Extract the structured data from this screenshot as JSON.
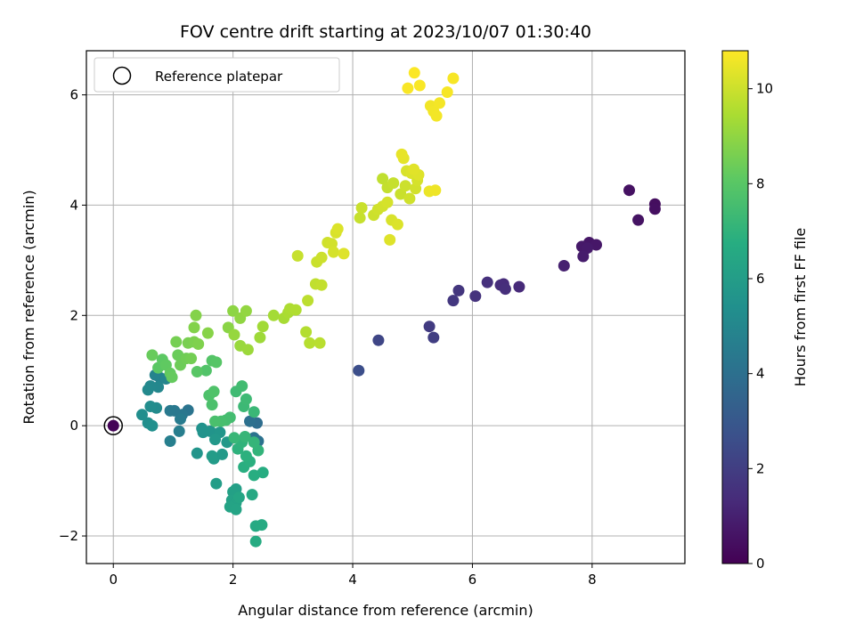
{
  "chart_data": {
    "type": "scatter",
    "title": "FOV centre drift starting at 2023/10/07 01:30:40",
    "xlabel": "Angular distance from reference (arcmin)",
    "ylabel": "Rotation from reference (arcmin)",
    "xlim": [
      -0.45,
      9.55
    ],
    "ylim": [
      -2.5,
      6.8
    ],
    "xticks": [
      0,
      2,
      4,
      6,
      8
    ],
    "yticks": [
      -2,
      0,
      2,
      4,
      6
    ],
    "xtick_labels": [
      "0",
      "2",
      "4",
      "6",
      "8"
    ],
    "ytick_labels": [
      "−2",
      "0",
      "2",
      "4",
      "6"
    ],
    "grid": true,
    "legend": {
      "position": "upper-left",
      "entries": [
        "Reference platepar"
      ]
    },
    "colorbar": {
      "label": "Hours from first FF file",
      "colormap": "viridis",
      "range": [
        0,
        10.8
      ],
      "ticks": [
        0,
        2,
        4,
        6,
        8,
        10
      ],
      "tick_labels": [
        "0",
        "2",
        "4",
        "6",
        "8",
        "10"
      ]
    },
    "reference_point": {
      "x": 0,
      "y": 0,
      "c": 0.1
    },
    "points": [
      [
        9.05,
        4.02,
        0.4
      ],
      [
        9.05,
        3.93,
        0.45
      ],
      [
        8.62,
        4.27,
        0.5
      ],
      [
        8.77,
        3.73,
        0.55
      ],
      [
        7.95,
        3.32,
        0.65
      ],
      [
        8.07,
        3.28,
        0.7
      ],
      [
        7.83,
        3.25,
        0.75
      ],
      [
        7.92,
        3.22,
        0.8
      ],
      [
        7.85,
        3.07,
        0.85
      ],
      [
        7.53,
        2.9,
        1.0
      ],
      [
        6.78,
        2.52,
        1.3
      ],
      [
        6.52,
        2.57,
        1.35
      ],
      [
        6.47,
        2.55,
        1.4
      ],
      [
        6.55,
        2.48,
        1.45
      ],
      [
        6.25,
        2.6,
        1.5
      ],
      [
        6.05,
        2.35,
        1.6
      ],
      [
        5.77,
        2.45,
        1.7
      ],
      [
        5.68,
        2.27,
        1.75
      ],
      [
        5.28,
        1.8,
        1.9
      ],
      [
        5.35,
        1.6,
        2.0
      ],
      [
        4.43,
        1.55,
        2.3
      ],
      [
        4.1,
        1.0,
        2.6
      ],
      [
        2.4,
        0.05,
        3.9
      ],
      [
        2.28,
        0.08,
        4.0
      ],
      [
        2.42,
        -0.28,
        4.1
      ],
      [
        2.35,
        -0.22,
        4.15
      ],
      [
        1.25,
        0.28,
        4.2
      ],
      [
        1.15,
        0.2,
        4.3
      ],
      [
        1.02,
        0.27,
        4.35
      ],
      [
        0.95,
        0.27,
        4.4
      ],
      [
        1.12,
        0.12,
        4.5
      ],
      [
        1.1,
        -0.1,
        4.6
      ],
      [
        0.95,
        -0.28,
        4.65
      ],
      [
        0.78,
        0.87,
        4.8
      ],
      [
        0.7,
        0.92,
        4.85
      ],
      [
        0.88,
        0.85,
        4.9
      ],
      [
        0.75,
        0.7,
        5.0
      ],
      [
        0.62,
        0.72,
        5.05
      ],
      [
        0.58,
        0.65,
        5.1
      ],
      [
        0.72,
        0.32,
        5.2
      ],
      [
        0.62,
        0.35,
        5.25
      ],
      [
        0.48,
        0.2,
        5.3
      ],
      [
        0.58,
        0.05,
        5.35
      ],
      [
        0.65,
        0.0,
        5.4
      ],
      [
        1.48,
        -0.05,
        5.5
      ],
      [
        1.5,
        -0.12,
        5.55
      ],
      [
        1.62,
        -0.1,
        5.6
      ],
      [
        1.4,
        -0.5,
        5.65
      ],
      [
        1.78,
        -0.12,
        5.7
      ],
      [
        1.7,
        -0.25,
        5.75
      ],
      [
        1.9,
        -0.3,
        5.8
      ],
      [
        1.82,
        -0.52,
        5.85
      ],
      [
        1.68,
        -0.6,
        5.9
      ],
      [
        1.65,
        -0.55,
        5.95
      ],
      [
        1.72,
        -1.05,
        6.0
      ],
      [
        2.05,
        -1.15,
        6.1
      ],
      [
        2.0,
        -1.2,
        6.15
      ],
      [
        1.98,
        -1.35,
        6.2
      ],
      [
        2.05,
        -1.4,
        6.25
      ],
      [
        1.95,
        -1.47,
        6.3
      ],
      [
        2.05,
        -1.52,
        6.35
      ],
      [
        2.1,
        -1.3,
        6.4
      ],
      [
        2.32,
        -1.25,
        6.5
      ],
      [
        2.38,
        -1.82,
        6.55
      ],
      [
        2.48,
        -1.8,
        6.6
      ],
      [
        2.38,
        -2.1,
        6.65
      ],
      [
        2.5,
        -0.85,
        6.7
      ],
      [
        2.35,
        -0.9,
        6.75
      ],
      [
        2.18,
        -0.75,
        6.8
      ],
      [
        2.28,
        -0.65,
        6.85
      ],
      [
        2.22,
        -0.55,
        6.9
      ],
      [
        2.08,
        -0.42,
        6.95
      ],
      [
        2.15,
        -0.3,
        7.0
      ],
      [
        2.42,
        -0.45,
        7.05
      ],
      [
        2.35,
        -0.3,
        7.1
      ],
      [
        2.2,
        -0.2,
        7.15
      ],
      [
        2.02,
        -0.22,
        7.2
      ],
      [
        2.35,
        0.25,
        7.25
      ],
      [
        2.18,
        0.35,
        7.3
      ],
      [
        2.22,
        0.48,
        7.35
      ],
      [
        2.05,
        0.62,
        7.4
      ],
      [
        2.15,
        0.72,
        7.45
      ],
      [
        1.95,
        0.15,
        7.5
      ],
      [
        1.88,
        0.1,
        7.55
      ],
      [
        1.8,
        0.08,
        7.6
      ],
      [
        1.7,
        0.08,
        7.65
      ],
      [
        1.65,
        0.38,
        7.7
      ],
      [
        1.6,
        0.55,
        7.75
      ],
      [
        1.68,
        0.62,
        7.8
      ],
      [
        1.55,
        1.0,
        7.85
      ],
      [
        1.65,
        1.18,
        7.9
      ],
      [
        1.72,
        1.15,
        7.95
      ],
      [
        1.4,
        0.98,
        8.0
      ],
      [
        0.75,
        1.05,
        8.05
      ],
      [
        0.82,
        1.2,
        8.1
      ],
      [
        0.88,
        1.1,
        8.15
      ],
      [
        0.95,
        0.95,
        8.2
      ],
      [
        0.98,
        0.88,
        8.25
      ],
      [
        0.65,
        1.28,
        8.3
      ],
      [
        1.08,
        1.28,
        8.35
      ],
      [
        1.12,
        1.1,
        8.4
      ],
      [
        1.22,
        1.22,
        8.45
      ],
      [
        1.3,
        1.22,
        8.5
      ],
      [
        1.05,
        1.52,
        8.55
      ],
      [
        1.25,
        1.5,
        8.6
      ],
      [
        1.35,
        1.52,
        8.65
      ],
      [
        1.42,
        1.48,
        8.7
      ],
      [
        1.35,
        1.78,
        8.75
      ],
      [
        1.38,
        2.0,
        8.8
      ],
      [
        1.58,
        1.68,
        8.85
      ],
      [
        1.92,
        1.78,
        8.9
      ],
      [
        2.0,
        2.08,
        8.95
      ],
      [
        2.12,
        1.95,
        9.0
      ],
      [
        2.22,
        2.08,
        9.05
      ],
      [
        2.02,
        1.65,
        9.1
      ],
      [
        2.12,
        1.45,
        9.15
      ],
      [
        2.25,
        1.38,
        9.2
      ],
      [
        2.45,
        1.6,
        9.25
      ],
      [
        2.5,
        1.8,
        9.3
      ],
      [
        2.68,
        2.0,
        9.35
      ],
      [
        2.85,
        1.95,
        9.4
      ],
      [
        2.92,
        2.05,
        9.45
      ],
      [
        2.95,
        2.12,
        9.5
      ],
      [
        3.05,
        2.1,
        9.55
      ],
      [
        3.22,
        1.7,
        9.6
      ],
      [
        3.28,
        1.5,
        9.65
      ],
      [
        3.45,
        1.5,
        9.7
      ],
      [
        3.25,
        2.27,
        9.75
      ],
      [
        3.38,
        2.57,
        9.8
      ],
      [
        3.48,
        2.55,
        9.85
      ],
      [
        3.08,
        3.08,
        9.9
      ],
      [
        3.4,
        2.97,
        9.95
      ],
      [
        3.48,
        3.05,
        10.0
      ],
      [
        3.58,
        3.32,
        10.05
      ],
      [
        3.65,
        3.3,
        10.1
      ],
      [
        3.68,
        3.15,
        10.15
      ],
      [
        3.72,
        3.5,
        10.2
      ],
      [
        3.75,
        3.57,
        10.25
      ],
      [
        3.85,
        3.12,
        10.3
      ],
      [
        4.12,
        3.77,
        9.9
      ],
      [
        4.15,
        3.95,
        9.95
      ],
      [
        4.35,
        3.82,
        10.0
      ],
      [
        4.42,
        3.92,
        10.05
      ],
      [
        4.5,
        3.98,
        10.1
      ],
      [
        4.58,
        4.05,
        10.15
      ],
      [
        4.65,
        3.73,
        10.2
      ],
      [
        4.75,
        3.65,
        10.25
      ],
      [
        4.62,
        3.37,
        10.3
      ],
      [
        4.5,
        4.48,
        9.8
      ],
      [
        4.58,
        4.32,
        9.85
      ],
      [
        4.68,
        4.4,
        9.9
      ],
      [
        4.8,
        4.2,
        9.95
      ],
      [
        4.88,
        4.35,
        10.0
      ],
      [
        4.95,
        4.12,
        10.05
      ],
      [
        5.05,
        4.3,
        10.1
      ],
      [
        5.08,
        4.45,
        10.15
      ],
      [
        4.9,
        4.62,
        10.2
      ],
      [
        4.98,
        4.58,
        10.25
      ],
      [
        5.1,
        4.55,
        10.3
      ],
      [
        5.02,
        4.65,
        10.35
      ],
      [
        4.85,
        4.85,
        10.4
      ],
      [
        4.82,
        4.92,
        10.45
      ],
      [
        5.28,
        4.25,
        10.5
      ],
      [
        5.38,
        4.27,
        10.55
      ],
      [
        5.3,
        5.8,
        10.6
      ],
      [
        5.35,
        5.7,
        10.62
      ],
      [
        5.4,
        5.62,
        10.64
      ],
      [
        5.45,
        5.85,
        10.66
      ],
      [
        5.58,
        6.05,
        10.68
      ],
      [
        5.68,
        6.3,
        10.7
      ],
      [
        4.92,
        6.12,
        10.72
      ],
      [
        5.12,
        6.17,
        10.74
      ],
      [
        5.03,
        6.4,
        10.76
      ]
    ]
  }
}
